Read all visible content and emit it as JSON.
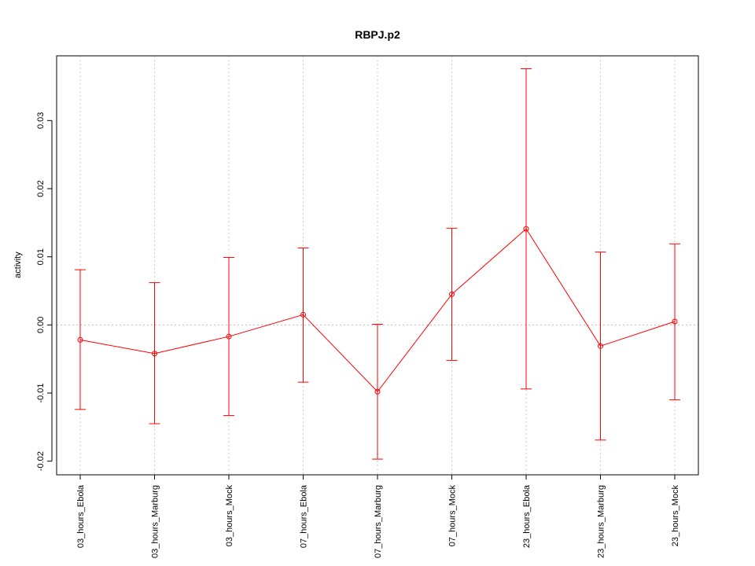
{
  "chart_data": {
    "type": "line",
    "title": "RBPJ.p2",
    "xlabel": "",
    "ylabel": "activity",
    "ylim": [
      -0.022,
      0.0395
    ],
    "yticks": [
      -0.02,
      -0.01,
      0.0,
      0.01,
      0.02,
      0.03
    ],
    "ytick_labels": [
      "-0.02",
      "-0.01",
      "0.00",
      "0.01",
      "0.02",
      "0.03"
    ],
    "grid": true,
    "reference_line": 0.0,
    "categories": [
      "03_hours_Ebola",
      "03_hours_Marburg",
      "03_hours_Mock",
      "07_hours_Ebola",
      "07_hours_Marburg",
      "07_hours_Mock",
      "23_hours_Ebola",
      "23_hours_Marburg",
      "23_hours_Mock"
    ],
    "series": [
      {
        "values": [
          -0.0022,
          -0.0042,
          -0.0017,
          0.0015,
          -0.0098,
          0.0045,
          0.0141,
          -0.0031,
          0.0005
        ],
        "lower": [
          -0.0124,
          -0.0145,
          -0.0133,
          -0.0084,
          -0.0197,
          -0.0052,
          -0.0094,
          -0.0169,
          -0.011
        ],
        "upper": [
          0.0081,
          0.0062,
          0.0099,
          0.0113,
          0.0001,
          0.0142,
          0.0376,
          0.0107,
          0.0119
        ],
        "color": "#ff0000"
      }
    ]
  }
}
